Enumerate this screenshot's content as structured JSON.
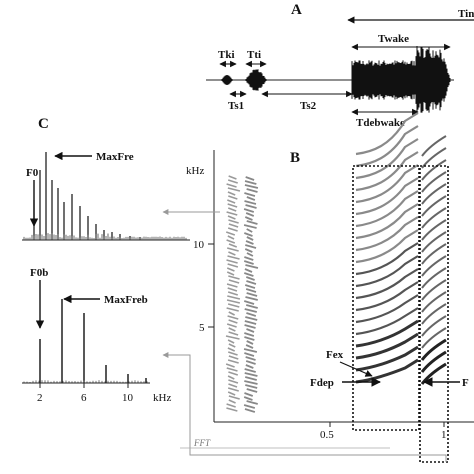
{
  "panel_a": {
    "letter": "A",
    "labels": {
      "tki": "Tki",
      "tti": "Tti",
      "ts1": "Ts1",
      "ts2": "Ts2",
      "twake": "Twake",
      "tdebwake": "Tdebwake",
      "tin": "Tin"
    }
  },
  "panel_b": {
    "letter": "B",
    "ylabel": "kHz",
    "yticks": [
      "10",
      "5"
    ],
    "xticks": [
      "0.5",
      "1"
    ],
    "labels": {
      "fex": "Fex",
      "fdep": "Fdep",
      "fright": "F"
    }
  },
  "panel_c": {
    "letter": "C",
    "top_labels": {
      "f0": "F0",
      "maxfre": "MaxFre"
    },
    "bottom_labels": {
      "f0b": "F0b",
      "maxfreb": "MaxFreb"
    },
    "xticks": [
      "2",
      "6",
      "10"
    ],
    "xunit": "kHz",
    "fft": "FFT"
  }
}
